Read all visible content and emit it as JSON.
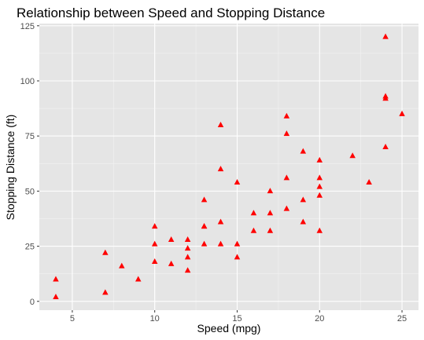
{
  "chart_data": {
    "type": "scatter",
    "title": "Relationship between Speed and Stopping Distance",
    "xlabel": "Speed (mpg)",
    "ylabel": "Stopping Distance (ft)",
    "xlim": [
      3.0,
      26.0
    ],
    "ylim": [
      -4.0,
      126.0
    ],
    "x_ticks": [
      5,
      10,
      15,
      20,
      25
    ],
    "y_ticks": [
      0,
      25,
      50,
      75,
      100,
      125
    ],
    "grid": true,
    "legend": "none",
    "marker": "triangle",
    "colors": {
      "marker": "#ff0000",
      "panel": "#e5e5e5",
      "grid_major": "#ffffff",
      "grid_minor": "#f2f2f2",
      "tick_text": "#4d4d4d"
    },
    "points": [
      [
        4,
        2
      ],
      [
        4,
        10
      ],
      [
        7,
        4
      ],
      [
        7,
        22
      ],
      [
        8,
        16
      ],
      [
        9,
        10
      ],
      [
        10,
        18
      ],
      [
        10,
        26
      ],
      [
        10,
        34
      ],
      [
        11,
        17
      ],
      [
        11,
        28
      ],
      [
        12,
        14
      ],
      [
        12,
        20
      ],
      [
        12,
        24
      ],
      [
        12,
        28
      ],
      [
        13,
        26
      ],
      [
        13,
        34
      ],
      [
        13,
        34
      ],
      [
        13,
        46
      ],
      [
        14,
        26
      ],
      [
        14,
        36
      ],
      [
        14,
        60
      ],
      [
        14,
        80
      ],
      [
        15,
        20
      ],
      [
        15,
        26
      ],
      [
        15,
        54
      ],
      [
        16,
        32
      ],
      [
        16,
        40
      ],
      [
        17,
        32
      ],
      [
        17,
        40
      ],
      [
        17,
        50
      ],
      [
        18,
        42
      ],
      [
        18,
        56
      ],
      [
        18,
        76
      ],
      [
        18,
        84
      ],
      [
        19,
        36
      ],
      [
        19,
        46
      ],
      [
        19,
        68
      ],
      [
        20,
        32
      ],
      [
        20,
        48
      ],
      [
        20,
        52
      ],
      [
        20,
        56
      ],
      [
        20,
        64
      ],
      [
        22,
        66
      ],
      [
        23,
        54
      ],
      [
        24,
        70
      ],
      [
        24,
        92
      ],
      [
        24,
        93
      ],
      [
        24,
        120
      ],
      [
        25,
        85
      ]
    ]
  }
}
